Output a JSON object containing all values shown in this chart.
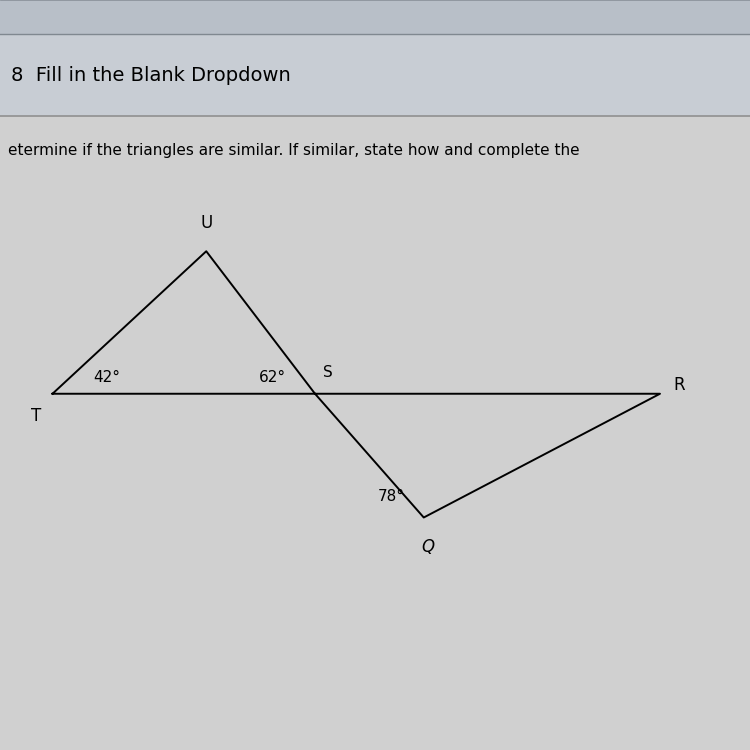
{
  "bg_color": "#d0d0d0",
  "top_bar_color": "#b8bfc8",
  "header_bg": "#c8cdd4",
  "header_text": "8  Fill in the Blank Dropdown",
  "subtext": "etermine if the triangles are similar. If similar, state how and complete the",
  "header_fontsize": 14,
  "subtext_fontsize": 11,
  "line_color": "#000000",
  "text_color": "#000000",
  "triangle1": {
    "T": [
      0.07,
      0.475
    ],
    "U": [
      0.275,
      0.665
    ],
    "S": [
      0.42,
      0.475
    ],
    "angle_T_label": "42°",
    "angle_S_label": "62°",
    "vertex_T_label": "T",
    "vertex_U_label": "U",
    "vertex_S_label": "S"
  },
  "triangle2": {
    "S": [
      0.42,
      0.475
    ],
    "R": [
      0.88,
      0.475
    ],
    "Q": [
      0.565,
      0.31
    ],
    "angle_Q_label": "78°",
    "vertex_R_label": "R",
    "vertex_Q_label": "Q"
  },
  "figsize": [
    7.5,
    7.5
  ],
  "dpi": 100
}
